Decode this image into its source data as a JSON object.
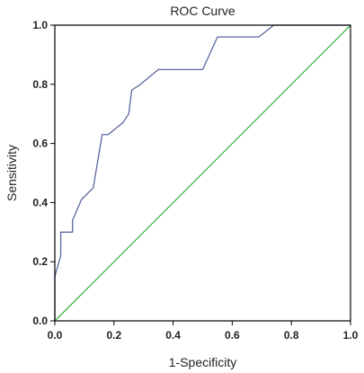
{
  "chart_data": {
    "type": "line",
    "title": "ROC Curve",
    "xlabel": "1-Specificity",
    "ylabel": "Sensitivity",
    "xlim": [
      0.0,
      1.0
    ],
    "ylim": [
      0.0,
      1.0
    ],
    "x_ticks": [
      "0.0",
      "0.2",
      "0.4",
      "0.6",
      "0.8",
      "1.0"
    ],
    "y_ticks": [
      "0.0",
      "0.2",
      "0.4",
      "0.6",
      "0.8",
      "1.0"
    ],
    "x_tick_values": [
      0.0,
      0.2,
      0.4,
      0.6,
      0.8,
      1.0
    ],
    "y_tick_values": [
      0.0,
      0.2,
      0.4,
      0.6,
      0.8,
      1.0
    ],
    "grid": false,
    "series": [
      {
        "color": "#5a68a0",
        "x": [
          0.0,
          0.0,
          0.02,
          0.02,
          0.06,
          0.06,
          0.09,
          0.13,
          0.15,
          0.16,
          0.18,
          0.23,
          0.25,
          0.26,
          0.29,
          0.35,
          0.5,
          0.55,
          0.69,
          0.74,
          1.0
        ],
        "y": [
          0.0,
          0.15,
          0.22,
          0.3,
          0.3,
          0.34,
          0.41,
          0.45,
          0.57,
          0.63,
          0.63,
          0.67,
          0.7,
          0.78,
          0.8,
          0.85,
          0.85,
          0.96,
          0.96,
          1.0,
          1.0
        ]
      },
      {
        "color": "#3db24a",
        "x": [
          0.0,
          1.0
        ],
        "y": [
          0.0,
          1.0
        ]
      }
    ]
  }
}
